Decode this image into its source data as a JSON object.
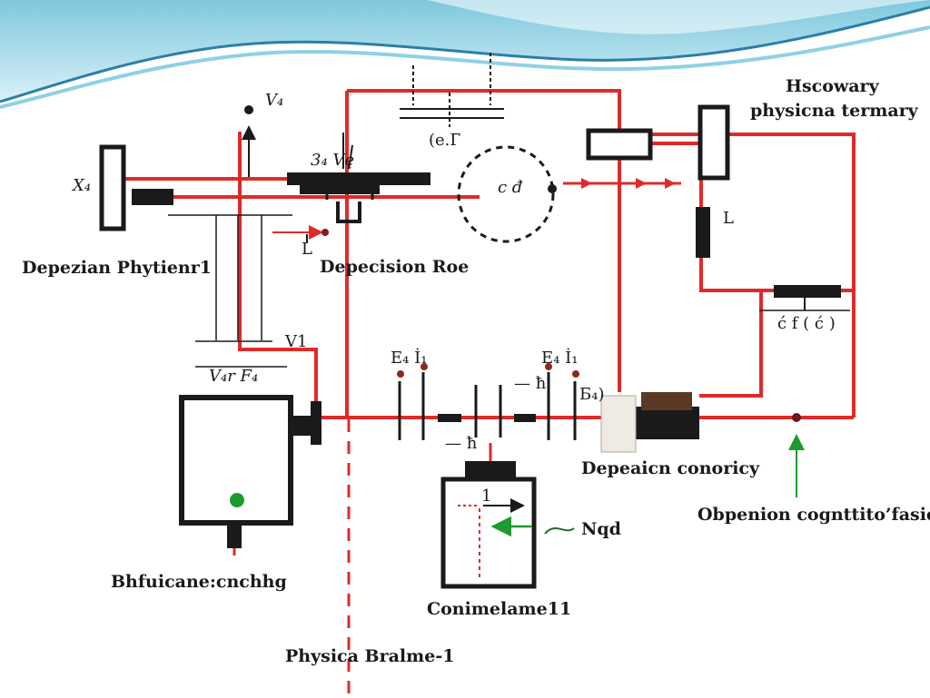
{
  "labels": {
    "top_right_line1": "Hscowary",
    "top_right_line2": "physicna termary",
    "node_x": "X₄",
    "node_v": "V₄",
    "label_3v": "3₄ Vę",
    "label_eI": "(е.Г",
    "label_cd": "c đ",
    "label_L_top": "L",
    "label_L_mid": "L",
    "label_ef": "ć f ( ć )",
    "left_heading": "Depezian Phytienr1",
    "center_heading": "Depecision Rое",
    "label_vi": "V1",
    "label_vf": "V₄r F₄",
    "label_en1": "E₄ İ₁",
    "label_en2": "E₄ İ₁",
    "label_bt": "Б₄)",
    "label_h1": "— ħ",
    "label_h2": "— ħ",
    "right_middle_heading": "Depeaicn conoricy",
    "far_right_heading": "Obpenion cognttito’fasic",
    "left_bottom_heading": "Bhfuicane:cnchhg",
    "center_box_heading": "Conimelame11",
    "arrow_label": "Nqd",
    "box_marker": "1",
    "bottom_heading": "Physica Bralme-1"
  },
  "colors": {
    "wire": "#e02a2a",
    "dark": "#1a1a1a",
    "green": "#1f9a2e",
    "wave_dark": "#2b7fa8",
    "wave_light": "#8fd0e6",
    "sky": "#c9e9f3"
  },
  "icons": {
    "green_dot": "indicator-dot-icon",
    "arrow": "arrow-icon"
  }
}
